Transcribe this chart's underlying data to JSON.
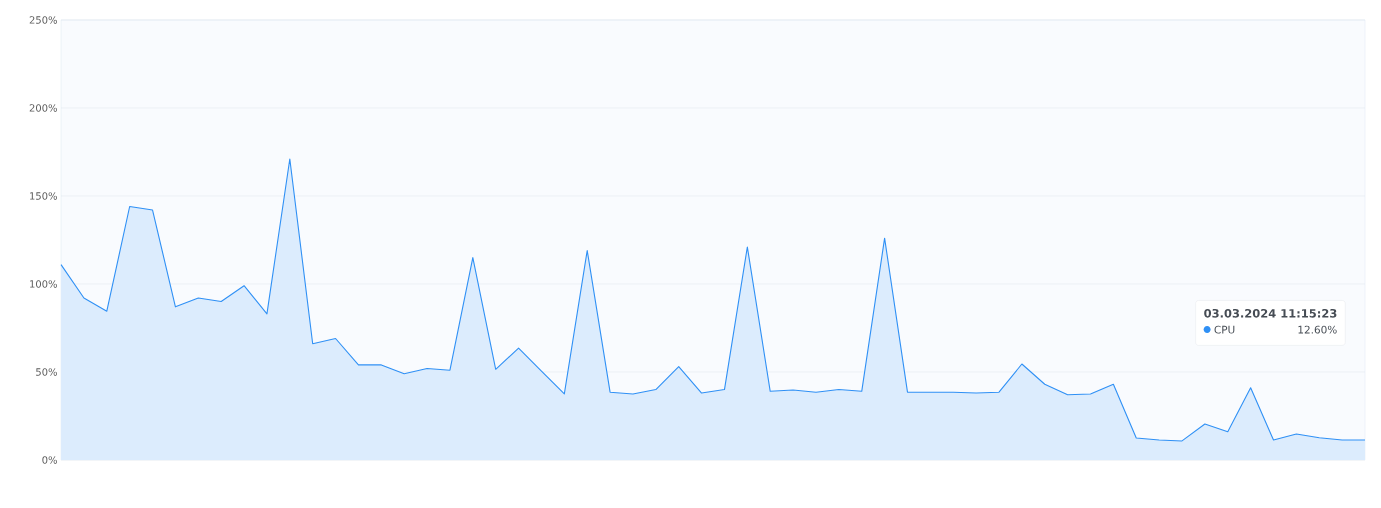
{
  "chart_data": {
    "type": "area",
    "categories": [
      null,
      null,
      null,
      null,
      null,
      null,
      null,
      null,
      null,
      null,
      null,
      null,
      null,
      null,
      null,
      null,
      null,
      null,
      null,
      null,
      null,
      null,
      null,
      null,
      null,
      null,
      null,
      null,
      null,
      null,
      null,
      null,
      null,
      null,
      null,
      null,
      null,
      null,
      null,
      null,
      null,
      null,
      null,
      null,
      null,
      null,
      null,
      null,
      null,
      null,
      null,
      null,
      null,
      null,
      null,
      null,
      null,
      null
    ],
    "series": [
      {
        "name": "CPU",
        "color": "#2f90f5",
        "values": [
          111,
          92,
          84.5,
          144,
          142,
          87,
          92,
          90,
          99,
          83,
          171,
          66,
          69,
          54,
          54,
          49,
          52,
          51,
          115,
          51.5,
          63.5,
          50.5,
          37.5,
          119,
          38.5,
          37.5,
          40,
          53,
          38,
          40,
          121,
          39,
          39.7,
          38.5,
          40,
          39,
          126,
          38.5,
          38.5,
          38.5,
          38,
          38.5,
          54.5,
          43,
          37,
          37.5,
          43,
          12.5,
          11.3,
          10.8,
          20.4,
          16,
          41,
          11.3,
          14.7,
          12.6,
          11.3,
          11.3
        ]
      }
    ],
    "ylim": [
      0,
      250
    ],
    "yticks": [
      {
        "value": 0,
        "label": "0%"
      },
      {
        "value": 50,
        "label": "50%"
      },
      {
        "value": 100,
        "label": "100%"
      },
      {
        "value": 150,
        "label": "150%"
      },
      {
        "value": 200,
        "label": "200%"
      },
      {
        "value": 250,
        "label": "250%"
      }
    ],
    "tick_labels": "y",
    "grid": "y",
    "legend": "bottom right",
    "annotations": [
      "03.03.2024 11:15:23",
      "12.60%"
    ]
  }
}
